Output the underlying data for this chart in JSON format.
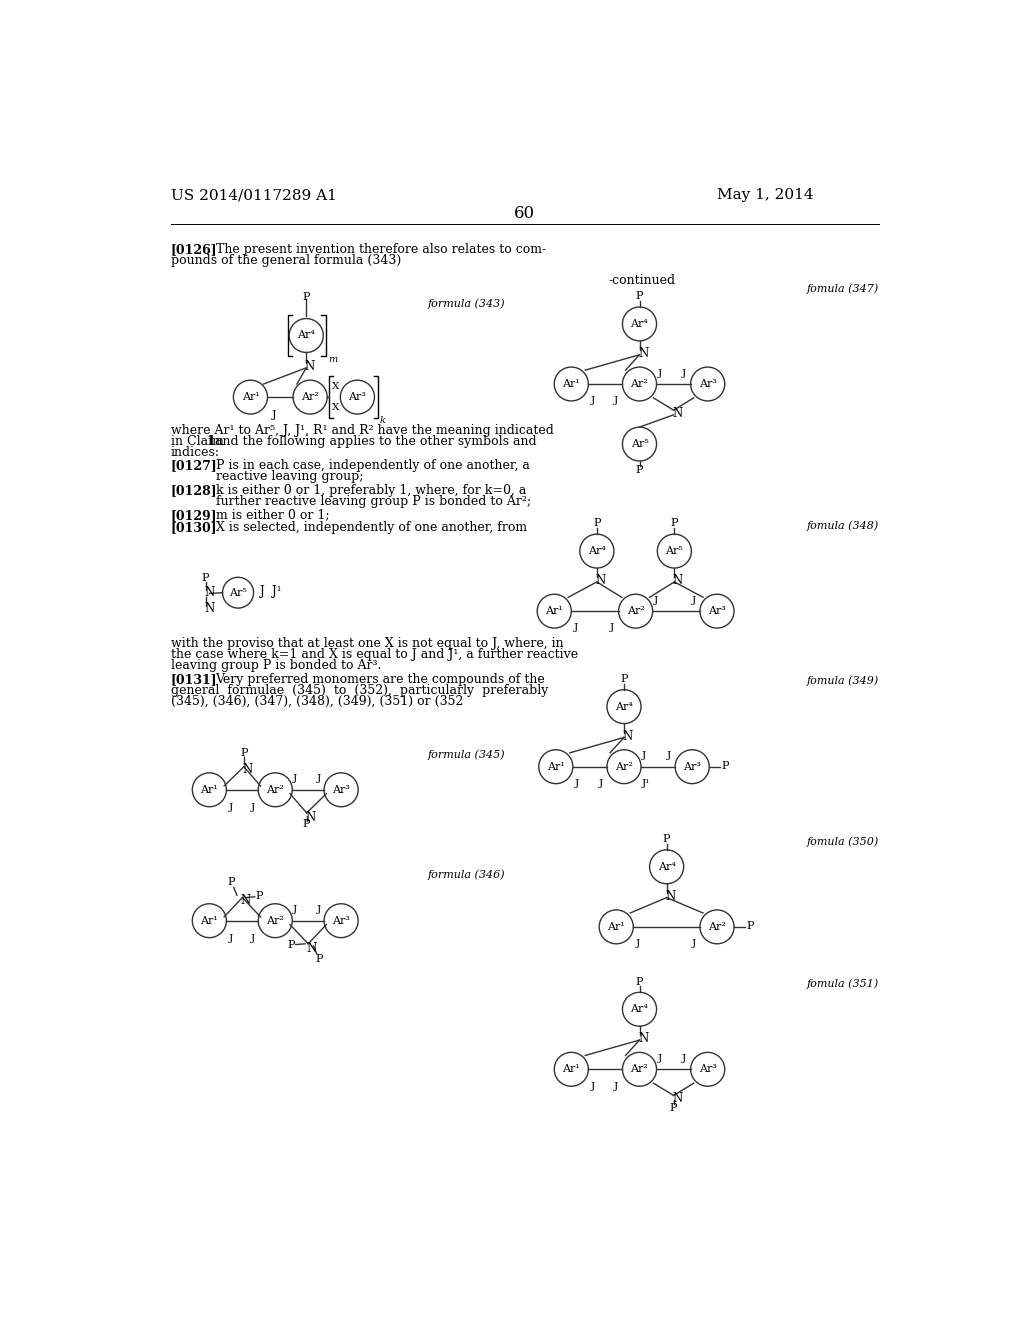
{
  "bg_color": "#ffffff",
  "header_left": "US 2014/0117289 A1",
  "header_right": "May 1, 2014",
  "page_number": "60",
  "continued_label": "-continued",
  "formula_label_343": "formula (343)",
  "formula_label_345": "formula (345)",
  "formula_label_346": "formula (346)",
  "formula_label_347": "fomula (347)",
  "formula_label_348": "fomula (348)",
  "formula_label_349": "fomula (349)",
  "formula_label_350": "fomula (350)",
  "formula_label_351": "fomula (351)"
}
